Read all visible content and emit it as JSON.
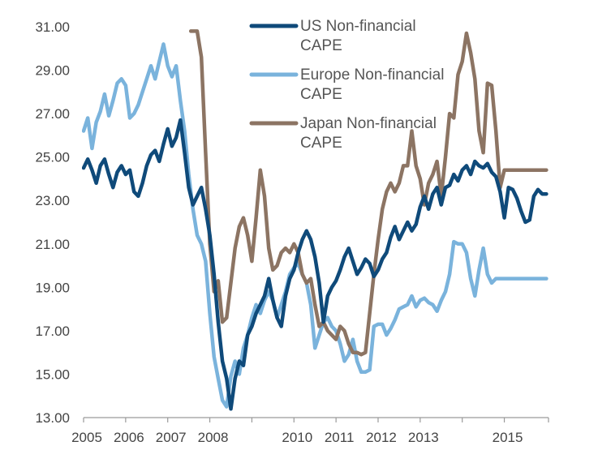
{
  "chart_data": {
    "type": "line",
    "title": "",
    "xlabel": "",
    "ylabel": "",
    "xlim": [
      2005.0,
      2016.05
    ],
    "ylim": [
      13.0,
      31.0
    ],
    "yticks": [
      "31.00",
      "29.00",
      "27.00",
      "25.00",
      "23.00",
      "21.00",
      "19.00",
      "17.00",
      "15.00",
      "13.00"
    ],
    "ytick_values": [
      31,
      29,
      27,
      25,
      23,
      21,
      19,
      17,
      15,
      13
    ],
    "xticks": [
      "2005",
      "2006",
      "2007",
      "2008",
      "2009",
      "2010",
      "2011",
      "2012",
      "2013",
      "2014",
      "2015"
    ],
    "xtick_labels": [
      "2005",
      "2006",
      "2007",
      "2008",
      "2010",
      "2011",
      "2012",
      "2013",
      "2015"
    ],
    "grid": false,
    "legend_position": "top-right",
    "colors": {
      "us": "#0f4a7a",
      "europe": "#7ab3dc",
      "japan": "#8c7463",
      "axis": "#9a9a9a"
    },
    "series": [
      {
        "name": "US Non-financial CAPE",
        "legend_lines": [
          "US Non-financial",
          "CAPE"
        ],
        "x": [
          2005.0,
          2005.1,
          2005.2,
          2005.3,
          2005.4,
          2005.5,
          2005.6,
          2005.7,
          2005.8,
          2005.9,
          2006.0,
          2006.1,
          2006.2,
          2006.3,
          2006.4,
          2006.5,
          2006.6,
          2006.7,
          2006.8,
          2006.9,
          2007.0,
          2007.1,
          2007.2,
          2007.3,
          2007.4,
          2007.5,
          2007.6,
          2007.7,
          2007.8,
          2007.9,
          2008.0,
          2008.1,
          2008.2,
          2008.3,
          2008.4,
          2008.5,
          2008.6,
          2008.7,
          2008.8,
          2008.9,
          2009.0,
          2009.1,
          2009.2,
          2009.3,
          2009.4,
          2009.5,
          2009.6,
          2009.7,
          2009.8,
          2009.9,
          2010.0,
          2010.1,
          2010.2,
          2010.3,
          2010.4,
          2010.5,
          2010.6,
          2010.7,
          2010.8,
          2010.9,
          2011.0,
          2011.1,
          2011.2,
          2011.3,
          2011.4,
          2011.5,
          2011.6,
          2011.7,
          2011.8,
          2011.9,
          2012.0,
          2012.1,
          2012.2,
          2012.3,
          2012.4,
          2012.5,
          2012.6,
          2012.7,
          2012.8,
          2012.9,
          2013.0,
          2013.1,
          2013.2,
          2013.3,
          2013.4,
          2013.5,
          2013.6,
          2013.7,
          2013.8,
          2013.9,
          2014.0,
          2014.1,
          2014.2,
          2014.3,
          2014.4,
          2014.5,
          2014.6,
          2014.7,
          2014.8,
          2014.9,
          2015.0,
          2015.1,
          2015.2,
          2015.3,
          2015.4,
          2015.5,
          2015.6,
          2015.7,
          2015.8,
          2015.9,
          2016.0
        ],
        "y": [
          24.5,
          24.9,
          24.4,
          23.8,
          24.6,
          24.9,
          24.2,
          23.6,
          24.3,
          24.6,
          24.2,
          24.4,
          23.4,
          23.2,
          23.8,
          24.6,
          25.1,
          25.3,
          24.8,
          25.6,
          26.3,
          25.5,
          25.9,
          26.7,
          25.2,
          23.6,
          22.8,
          23.2,
          23.6,
          22.6,
          21.4,
          19.6,
          17.4,
          15.6,
          14.8,
          13.4,
          14.8,
          15.6,
          15.4,
          16.8,
          17.2,
          17.8,
          18.2,
          18.6,
          19.4,
          18.4,
          17.6,
          17.2,
          18.6,
          19.4,
          19.8,
          20.6,
          21.2,
          21.6,
          21.2,
          20.4,
          19.2,
          17.4,
          18.6,
          19.0,
          19.3,
          19.8,
          20.4,
          20.8,
          20.2,
          19.6,
          19.9,
          20.3,
          20.1,
          19.5,
          19.8,
          20.3,
          20.6,
          21.3,
          21.8,
          21.2,
          21.6,
          22.0,
          21.6,
          21.9,
          22.7,
          23.2,
          22.6,
          23.3,
          23.6,
          22.8,
          23.6,
          23.7,
          24.2,
          23.9,
          24.4,
          24.6,
          24.2,
          24.8,
          24.6,
          24.5,
          24.7,
          24.3,
          24.1,
          23.4,
          22.2,
          23.6,
          23.5,
          23.1,
          22.5,
          22.0,
          22.1,
          23.2,
          23.5,
          23.3,
          23.3
        ]
      },
      {
        "name": "Europe Non-financial CAPE",
        "legend_lines": [
          "Europe Non-financial",
          "CAPE"
        ],
        "x": [
          2005.0,
          2005.1,
          2005.2,
          2005.3,
          2005.4,
          2005.5,
          2005.6,
          2005.7,
          2005.8,
          2005.9,
          2006.0,
          2006.1,
          2006.2,
          2006.3,
          2006.4,
          2006.5,
          2006.6,
          2006.7,
          2006.8,
          2006.9,
          2007.0,
          2007.1,
          2007.2,
          2007.3,
          2007.4,
          2007.5,
          2007.6,
          2007.7,
          2007.8,
          2007.9,
          2008.0,
          2008.1,
          2008.2,
          2008.3,
          2008.4,
          2008.5,
          2008.6,
          2008.7,
          2008.8,
          2008.9,
          2009.0,
          2009.1,
          2009.2,
          2009.3,
          2009.4,
          2009.5,
          2009.6,
          2009.7,
          2009.8,
          2009.9,
          2010.0,
          2010.1,
          2010.2,
          2010.3,
          2010.4,
          2010.5,
          2010.6,
          2010.7,
          2010.8,
          2010.9,
          2011.0,
          2011.1,
          2011.2,
          2011.3,
          2011.4,
          2011.5,
          2011.6,
          2011.7,
          2011.8,
          2011.9,
          2012.0,
          2012.1,
          2012.2,
          2012.3,
          2012.4,
          2012.5,
          2012.6,
          2012.7,
          2012.8,
          2012.9,
          2013.0,
          2013.1,
          2013.2,
          2013.3,
          2013.4,
          2013.5,
          2013.6,
          2013.7,
          2013.8,
          2013.9,
          2014.0,
          2014.1,
          2014.2,
          2014.3,
          2014.4,
          2014.5,
          2014.6,
          2014.7,
          2014.8,
          2014.9,
          2015.0,
          2015.1,
          2015.2,
          2015.3,
          2015.4,
          2015.5,
          2015.6,
          2015.7,
          2015.8,
          2015.9,
          2016.0
        ],
        "y": [
          26.2,
          26.8,
          25.4,
          26.6,
          27.1,
          27.9,
          26.9,
          27.6,
          28.4,
          28.6,
          28.3,
          26.8,
          27.0,
          27.4,
          28.0,
          28.6,
          29.2,
          28.6,
          29.4,
          30.2,
          29.2,
          28.7,
          29.2,
          27.6,
          26.2,
          24.2,
          22.6,
          21.4,
          21.0,
          20.2,
          17.8,
          15.8,
          14.8,
          13.8,
          13.5,
          14.9,
          15.6,
          15.0,
          16.2,
          16.8,
          17.6,
          18.2,
          17.8,
          18.4,
          18.8,
          18.4,
          17.6,
          18.2,
          18.8,
          19.6,
          19.9,
          20.1,
          19.6,
          19.2,
          18.2,
          16.2,
          16.8,
          17.4,
          17.6,
          17.2,
          17.0,
          16.4,
          15.6,
          15.9,
          16.6,
          15.6,
          15.1,
          15.1,
          15.2,
          17.2,
          17.3,
          17.3,
          16.8,
          17.1,
          17.5,
          18.0,
          18.1,
          18.2,
          18.6,
          18.1,
          18.4,
          18.5,
          18.3,
          18.2,
          17.9,
          18.4,
          18.8,
          19.6,
          21.1,
          21.0,
          21.0,
          20.6,
          19.4,
          18.6,
          19.8,
          20.8,
          19.6,
          19.2,
          19.4,
          19.4,
          19.4,
          19.4,
          19.4,
          19.4,
          19.4,
          19.4,
          19.4,
          19.4,
          19.4,
          19.4,
          19.4
        ]
      },
      {
        "name": "Japan Non-financial CAPE",
        "legend_lines": [
          "Japan Non-financial",
          "CAPE"
        ],
        "x": [
          2007.55,
          2007.7,
          2007.8,
          2007.9,
          2008.0,
          2008.1,
          2008.2,
          2008.3,
          2008.4,
          2008.5,
          2008.6,
          2008.7,
          2008.8,
          2008.9,
          2009.0,
          2009.1,
          2009.2,
          2009.3,
          2009.4,
          2009.5,
          2009.6,
          2009.7,
          2009.8,
          2009.9,
          2010.0,
          2010.1,
          2010.2,
          2010.3,
          2010.4,
          2010.5,
          2010.6,
          2010.7,
          2010.8,
          2010.9,
          2011.0,
          2011.1,
          2011.2,
          2011.3,
          2011.4,
          2011.5,
          2011.6,
          2011.7,
          2011.8,
          2011.9,
          2012.0,
          2012.1,
          2012.2,
          2012.3,
          2012.4,
          2012.5,
          2012.6,
          2012.7,
          2012.8,
          2012.9,
          2013.0,
          2013.1,
          2013.2,
          2013.3,
          2013.4,
          2013.5,
          2013.6,
          2013.7,
          2013.8,
          2013.9,
          2014.0,
          2014.1,
          2014.2,
          2014.3,
          2014.4,
          2014.5,
          2014.6,
          2014.7,
          2014.8,
          2014.9,
          2015.0,
          2015.1,
          2015.2,
          2015.3,
          2015.4,
          2015.5,
          2015.6,
          2015.7,
          2015.8,
          2015.9,
          2016.0
        ],
        "y": [
          30.8,
          30.8,
          29.6,
          25.2,
          21.0,
          18.8,
          19.3,
          17.4,
          17.6,
          19.2,
          20.8,
          21.8,
          22.2,
          21.4,
          20.2,
          22.2,
          24.4,
          23.2,
          20.8,
          19.8,
          20.0,
          20.6,
          20.8,
          20.6,
          21.0,
          20.6,
          19.6,
          19.2,
          19.4,
          18.2,
          17.2,
          17.4,
          17.0,
          16.8,
          16.6,
          17.2,
          17.0,
          16.4,
          16.0,
          16.0,
          15.9,
          16.0,
          17.8,
          19.6,
          21.2,
          22.6,
          23.4,
          23.8,
          23.4,
          23.8,
          24.6,
          24.6,
          26.2,
          24.6,
          24.0,
          22.8,
          23.8,
          24.2,
          24.8,
          23.2,
          25.0,
          27.0,
          26.8,
          28.8,
          29.4,
          30.7,
          29.8,
          28.6,
          26.2,
          25.2,
          28.4,
          28.3,
          26.2,
          23.6,
          24.4,
          24.4,
          24.4,
          24.4,
          24.4,
          24.4,
          24.4,
          24.4,
          24.4,
          24.4,
          24.4
        ]
      }
    ]
  }
}
